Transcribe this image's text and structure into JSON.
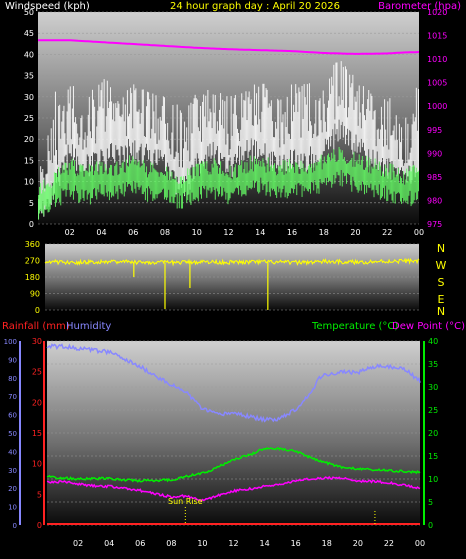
{
  "header": {
    "title": "24 hour graph day : April 20 2026",
    "left_label": "Windspeed (kph)",
    "right_label": "Barometer (hpa)"
  },
  "colors": {
    "background": "#000000",
    "wind_ticks": "#ffffff",
    "title": "#ffff00",
    "barometer": "#ff00ff",
    "wind_gust": "#ffffff",
    "wind_avg": "#66ff66",
    "direction": "#ffff00",
    "rainfall": "#ff2222",
    "humidity": "#8888ff",
    "temperature": "#00ee00",
    "dew_point": "#ff00ff",
    "sunrise": "#ffff00"
  },
  "wind_panel_labels": {
    "sunrise": "Sun Rise"
  },
  "compass": [
    "N",
    "W",
    "S",
    "E",
    "N"
  ],
  "bottom_panel_labels": {
    "rainfall": "Rainfall (mm)",
    "humidity": "Humidity",
    "temperature": "Temperature (°C)",
    "dew_point": "Dew Point (°C)",
    "sunrise": "Sun Rise"
  },
  "chart_data": [
    {
      "type": "line",
      "title": "24 hour graph day : April 20 2026",
      "x_ticks": [
        "02",
        "04",
        "06",
        "08",
        "10",
        "12",
        "14",
        "16",
        "18",
        "20",
        "22",
        "00"
      ],
      "x_hours": [
        2,
        4,
        6,
        8,
        10,
        12,
        14,
        16,
        18,
        20,
        22,
        24
      ],
      "xlim": [
        0,
        24
      ],
      "y_left": {
        "label": "Windspeed (kph)",
        "ylim": [
          0,
          50
        ],
        "ticks": [
          0,
          5,
          10,
          15,
          20,
          25,
          30,
          35,
          40,
          45,
          50
        ]
      },
      "y_right": {
        "label": "Barometer (hpa)",
        "ylim": [
          975,
          1020
        ],
        "ticks": [
          975,
          980,
          985,
          990,
          995,
          1000,
          1005,
          1010,
          1015,
          1020
        ]
      },
      "series": [
        {
          "name": "Wind gust",
          "axis": "left",
          "x": [
            0,
            1,
            2,
            3,
            4,
            5,
            6,
            7,
            8,
            9,
            10,
            11,
            12,
            13,
            14,
            15,
            16,
            17,
            18,
            19,
            20,
            21,
            22,
            23,
            24
          ],
          "values": [
            8,
            17,
            25,
            21,
            25,
            24,
            26,
            24,
            22,
            17,
            22,
            25,
            21,
            25,
            26,
            22,
            24,
            24,
            25,
            31,
            26,
            23,
            21,
            18,
            20
          ],
          "spread": [
            7,
            9,
            9,
            8,
            10,
            8,
            9,
            8,
            8,
            10,
            9,
            8,
            9,
            8,
            9,
            8,
            9,
            9,
            9,
            9,
            8,
            8,
            8,
            8,
            7
          ],
          "peak": [
            24,
            32,
            33,
            31,
            36,
            30,
            33,
            31,
            30,
            29,
            32,
            33,
            30,
            31,
            34,
            30,
            33,
            33,
            35,
            39,
            35,
            32,
            29,
            42,
            33
          ]
        },
        {
          "name": "Wind average",
          "axis": "left",
          "x": [
            0,
            1,
            2,
            3,
            4,
            5,
            6,
            7,
            8,
            9,
            10,
            11,
            12,
            13,
            14,
            15,
            16,
            17,
            18,
            19,
            20,
            21,
            22,
            23,
            24
          ],
          "values": [
            7,
            10,
            13,
            11,
            13,
            12,
            14,
            12,
            12,
            10,
            12,
            13,
            11,
            13,
            14,
            12,
            13,
            13,
            14,
            16,
            14,
            13,
            12,
            10,
            12
          ]
        },
        {
          "name": "Barometer",
          "axis": "right",
          "x": [
            0,
            2,
            4,
            6,
            8,
            10,
            12,
            14,
            16,
            18,
            20,
            22,
            23,
            24
          ],
          "values": [
            1014.0,
            1014.0,
            1013.6,
            1013.2,
            1012.8,
            1012.4,
            1012.1,
            1011.9,
            1011.7,
            1011.3,
            1011.1,
            1011.2,
            1011.4,
            1011.5
          ]
        }
      ]
    },
    {
      "type": "line",
      "name": "Wind direction",
      "ylim": [
        0,
        360
      ],
      "y_ticks": [
        0,
        90,
        180,
        270,
        360
      ],
      "xlim": [
        0,
        24
      ],
      "series": [
        {
          "name": "Wind direction",
          "x": [
            0,
            2,
            4,
            6,
            8,
            10,
            12,
            14,
            16,
            18,
            20,
            22,
            24
          ],
          "values": [
            262,
            260,
            265,
            261,
            258,
            263,
            260,
            262,
            259,
            264,
            261,
            266,
            268
          ],
          "dips": [
            {
              "x": 5.7,
              "value": 180
            },
            {
              "x": 7.7,
              "value": 5
            },
            {
              "x": 9.3,
              "value": 120
            },
            {
              "x": 14.3,
              "value": 0
            }
          ]
        }
      ]
    },
    {
      "type": "line",
      "title": "",
      "x_ticks": [
        "02",
        "04",
        "06",
        "08",
        "10",
        "12",
        "14",
        "16",
        "18",
        "20",
        "22",
        "00"
      ],
      "x_hours": [
        2,
        4,
        6,
        8,
        10,
        12,
        14,
        16,
        18,
        20,
        22,
        24
      ],
      "xlim": [
        0,
        24
      ],
      "sunrise_hour": 8.9,
      "y_outer_left": {
        "label": "Humidity",
        "ylim": [
          0,
          100
        ],
        "ticks": [
          0,
          10,
          20,
          30,
          40,
          50,
          60,
          70,
          80,
          90,
          100
        ]
      },
      "y_inner_left": {
        "label": "Rainfall (mm)",
        "ylim": [
          0,
          30
        ],
        "ticks": [
          0,
          5,
          10,
          15,
          20,
          25,
          30
        ]
      },
      "y_right": {
        "label": "Temperature (°C)",
        "ylim": [
          0,
          40
        ],
        "ticks": [
          0,
          5,
          10,
          15,
          20,
          25,
          30,
          35,
          40
        ]
      },
      "series": [
        {
          "name": "Humidity",
          "axis": "outer_left",
          "x": [
            0,
            1,
            2,
            3,
            4,
            5,
            6,
            7,
            8,
            9,
            10,
            11,
            12,
            13,
            14,
            15,
            16,
            17,
            17.5,
            18,
            19,
            20,
            21,
            22,
            23,
            24
          ],
          "values": [
            97,
            97,
            96,
            95,
            94,
            90,
            86,
            81,
            76,
            72,
            63,
            60,
            61,
            59,
            57,
            58,
            63,
            72,
            80,
            82,
            83,
            83,
            86,
            86,
            85,
            78
          ]
        },
        {
          "name": "Temperature",
          "axis": "right",
          "x": [
            0,
            1,
            2,
            3,
            4,
            5,
            6,
            7,
            8,
            9,
            10,
            11,
            12,
            13,
            14,
            15,
            16,
            17,
            18,
            19,
            20,
            21,
            22,
            23,
            24
          ],
          "values": [
            10.5,
            10.2,
            10.0,
            10.1,
            10.1,
            9.8,
            9.6,
            9.7,
            9.8,
            10.6,
            11.2,
            12.6,
            14.2,
            15.2,
            16.7,
            16.5,
            16.0,
            14.6,
            13.5,
            12.5,
            12.2,
            12.0,
            11.8,
            11.6,
            11.5
          ]
        },
        {
          "name": "Dew Point",
          "axis": "right",
          "x": [
            0,
            1,
            2,
            3,
            4,
            5,
            6,
            7,
            8,
            9,
            10,
            11,
            12,
            13,
            14,
            15,
            16,
            17,
            18,
            19,
            20,
            21,
            22,
            23,
            24
          ],
          "values": [
            9.3,
            9.4,
            8.9,
            8.5,
            8.4,
            8.0,
            7.5,
            6.8,
            6.1,
            6.3,
            5.3,
            6.4,
            7.4,
            7.8,
            8.4,
            8.8,
            9.6,
            10.1,
            10.2,
            10.2,
            9.6,
            9.5,
            9.2,
            8.6,
            8.0
          ]
        },
        {
          "name": "Rainfall",
          "axis": "inner_left",
          "x": [
            0,
            24
          ],
          "values": [
            0,
            0
          ]
        }
      ]
    }
  ]
}
